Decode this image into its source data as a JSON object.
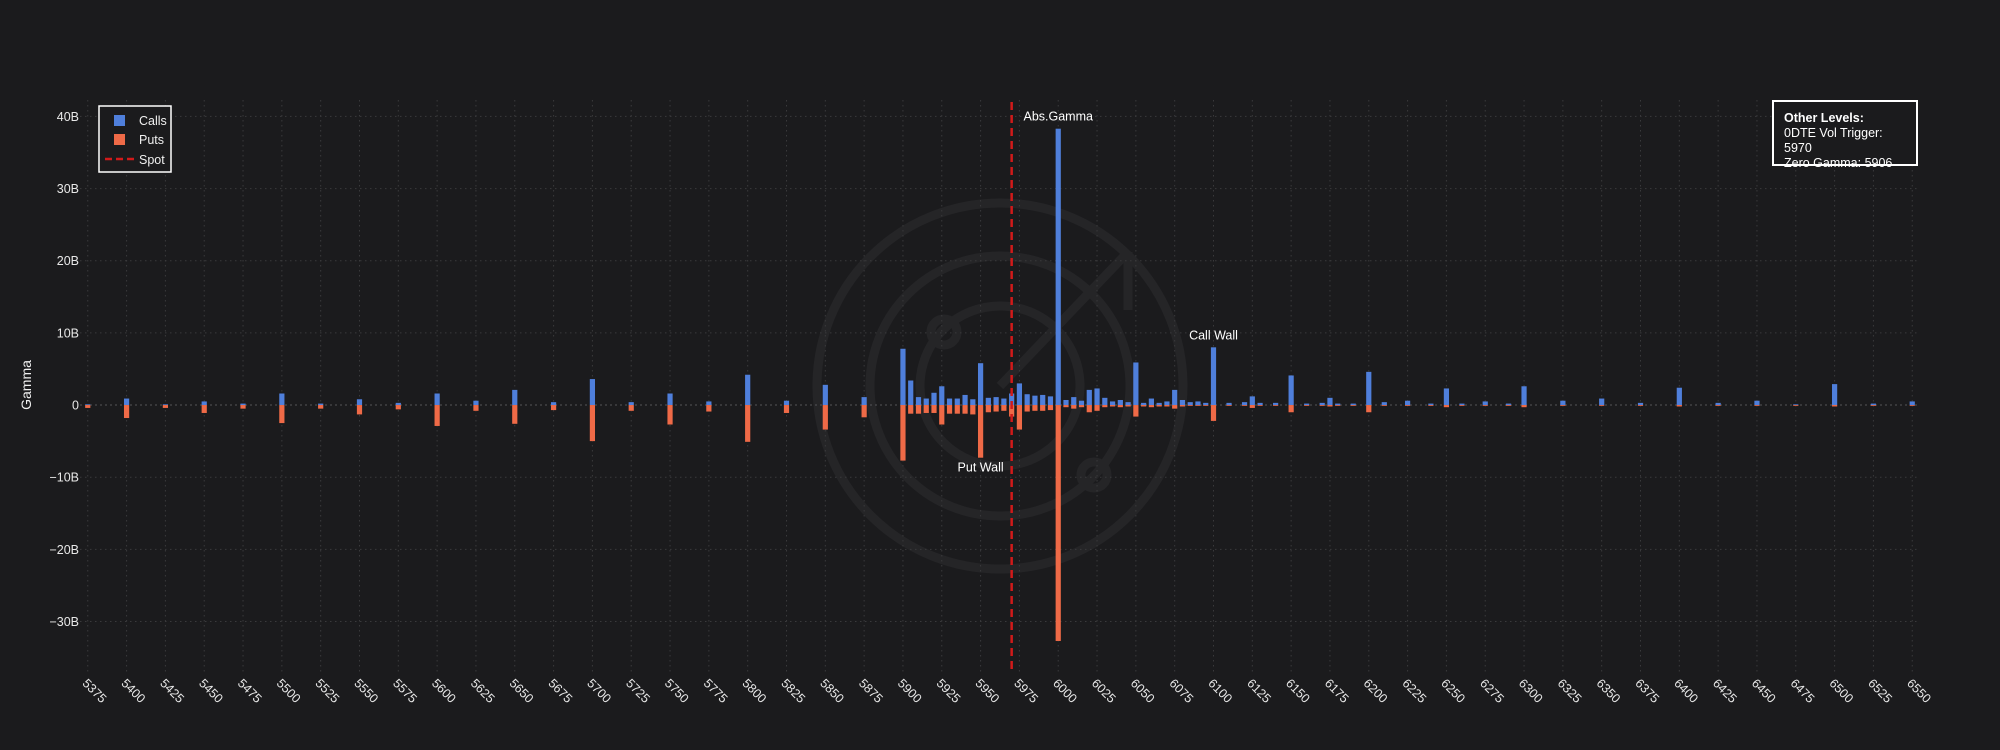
{
  "chart_data": {
    "type": "bar",
    "title": "",
    "xlabel": "",
    "ylabel": "Gamma",
    "xlim": [
      5370,
      6555
    ],
    "ylim": [
      -37,
      42
    ],
    "x_ticks": [
      5375,
      5400,
      5425,
      5450,
      5475,
      5500,
      5525,
      5550,
      5575,
      5600,
      5625,
      5650,
      5675,
      5700,
      5725,
      5750,
      5775,
      5800,
      5825,
      5850,
      5875,
      5900,
      5925,
      5950,
      5975,
      6000,
      6025,
      6050,
      6075,
      6100,
      6125,
      6150,
      6175,
      6200,
      6225,
      6250,
      6275,
      6300,
      6325,
      6350,
      6375,
      6400,
      6425,
      6450,
      6475,
      6500,
      6525,
      6550
    ],
    "y_ticks": [
      {
        "value": 40,
        "label": "40B"
      },
      {
        "value": 30,
        "label": "30B"
      },
      {
        "value": 20,
        "label": "20B"
      },
      {
        "value": 10,
        "label": "10B"
      },
      {
        "value": 0,
        "label": "0"
      },
      {
        "value": -10,
        "label": "−10B"
      },
      {
        "value": -20,
        "label": "−20B"
      },
      {
        "value": -30,
        "label": "−30B"
      }
    ],
    "grid": true,
    "legend": {
      "placement": "top-left",
      "items": [
        "Calls",
        "Puts",
        "Spot"
      ]
    },
    "colors": {
      "calls": "#4f7fdb",
      "puts": "#ef6a47",
      "spot": "#d11a1a",
      "background": "#1b1b1d",
      "grid": "#3a3a3c"
    },
    "series": [
      {
        "name": "Calls",
        "x": [
          5375,
          5400,
          5425,
          5450,
          5475,
          5500,
          5525,
          5550,
          5575,
          5600,
          5625,
          5650,
          5675,
          5700,
          5725,
          5750,
          5775,
          5800,
          5825,
          5850,
          5875,
          5900,
          5905,
          5910,
          5915,
          5920,
          5925,
          5930,
          5935,
          5940,
          5945,
          5950,
          5955,
          5960,
          5965,
          5970,
          5975,
          5980,
          5985,
          5990,
          5995,
          6000,
          6005,
          6010,
          6015,
          6020,
          6025,
          6030,
          6035,
          6040,
          6045,
          6050,
          6055,
          6060,
          6065,
          6070,
          6075,
          6080,
          6085,
          6090,
          6095,
          6100,
          6110,
          6120,
          6125,
          6130,
          6140,
          6150,
          6160,
          6170,
          6175,
          6180,
          6190,
          6200,
          6210,
          6225,
          6240,
          6250,
          6260,
          6275,
          6290,
          6300,
          6325,
          6350,
          6375,
          6400,
          6425,
          6450,
          6475,
          6500,
          6525,
          6550
        ],
        "values": [
          0.1,
          0.9,
          0.1,
          0.5,
          0.2,
          1.6,
          0.2,
          0.8,
          0.3,
          1.6,
          0.6,
          2.1,
          0.4,
          3.6,
          0.4,
          1.6,
          0.5,
          4.2,
          0.6,
          2.8,
          1.1,
          7.8,
          3.4,
          1.1,
          0.9,
          1.7,
          2.6,
          0.9,
          0.9,
          1.4,
          0.8,
          5.8,
          1.0,
          1.1,
          0.9,
          1.6,
          3.0,
          1.5,
          1.3,
          1.4,
          1.2,
          38.3,
          0.7,
          1.1,
          0.6,
          2.1,
          2.3,
          1.0,
          0.5,
          0.7,
          0.4,
          5.9,
          0.3,
          0.9,
          0.3,
          0.5,
          2.1,
          0.7,
          0.4,
          0.5,
          0.3,
          8.0,
          0.3,
          0.4,
          1.2,
          0.3,
          0.3,
          4.1,
          0.2,
          0.3,
          1.0,
          0.2,
          0.2,
          4.6,
          0.4,
          0.6,
          0.2,
          2.3,
          0.2,
          0.5,
          0.2,
          2.6,
          0.6,
          0.9,
          0.3,
          2.4,
          0.3,
          0.6,
          0.1,
          2.9,
          0.2,
          0.5
        ]
      },
      {
        "name": "Puts",
        "x": [
          5375,
          5400,
          5425,
          5450,
          5475,
          5500,
          5525,
          5550,
          5575,
          5600,
          5625,
          5650,
          5675,
          5700,
          5725,
          5750,
          5775,
          5800,
          5825,
          5850,
          5875,
          5900,
          5905,
          5910,
          5915,
          5920,
          5925,
          5930,
          5935,
          5940,
          5945,
          5950,
          5955,
          5960,
          5965,
          5970,
          5975,
          5980,
          5985,
          5990,
          5995,
          6000,
          6005,
          6010,
          6015,
          6020,
          6025,
          6030,
          6035,
          6040,
          6045,
          6050,
          6055,
          6060,
          6065,
          6070,
          6075,
          6080,
          6085,
          6090,
          6095,
          6100,
          6110,
          6120,
          6125,
          6130,
          6140,
          6150,
          6160,
          6170,
          6175,
          6180,
          6190,
          6200,
          6210,
          6225,
          6240,
          6250,
          6260,
          6275,
          6290,
          6300,
          6325,
          6350,
          6375,
          6400,
          6425,
          6450,
          6475,
          6500,
          6525,
          6550
        ],
        "values": [
          -0.4,
          -1.8,
          -0.4,
          -1.1,
          -0.5,
          -2.5,
          -0.5,
          -1.3,
          -0.6,
          -2.9,
          -0.8,
          -2.6,
          -0.7,
          -5.0,
          -0.8,
          -2.7,
          -0.9,
          -5.1,
          -1.1,
          -3.4,
          -1.7,
          -7.7,
          -1.2,
          -1.2,
          -1.1,
          -1.1,
          -2.7,
          -1.2,
          -1.2,
          -1.2,
          -1.3,
          -7.3,
          -1.0,
          -0.9,
          -0.8,
          -1.6,
          -3.4,
          -0.9,
          -0.8,
          -0.8,
          -0.7,
          -32.7,
          -0.3,
          -0.5,
          -0.3,
          -1.0,
          -0.8,
          -0.3,
          -0.2,
          -0.3,
          -0.2,
          -1.6,
          -0.2,
          -0.3,
          -0.2,
          -0.2,
          -0.5,
          -0.2,
          -0.1,
          -0.1,
          -0.1,
          -2.2,
          -0.1,
          -0.1,
          -0.4,
          -0.1,
          -0.1,
          -1.0,
          -0.1,
          -0.1,
          -0.2,
          -0.1,
          -0.1,
          -1.0,
          -0.1,
          -0.1,
          -0.1,
          -0.3,
          -0.1,
          -0.1,
          -0.1,
          -0.3,
          -0.1,
          -0.1,
          -0.1,
          -0.2,
          -0.1,
          -0.1,
          -0.1,
          -0.2,
          -0.1,
          -0.1
        ]
      }
    ],
    "spot": 5970,
    "annotations": [
      {
        "label": "Abs.Gamma",
        "x": 6000,
        "y": 38.3
      },
      {
        "label": "Call Wall",
        "x": 6100,
        "y": 8.0
      },
      {
        "label": "Put Wall",
        "x": 5950,
        "y": -7.3
      }
    ],
    "other_levels": {
      "title": "Other Levels:",
      "lines": [
        "0DTE Vol Trigger: 5970",
        "Zero Gamma: 5906"
      ]
    }
  }
}
